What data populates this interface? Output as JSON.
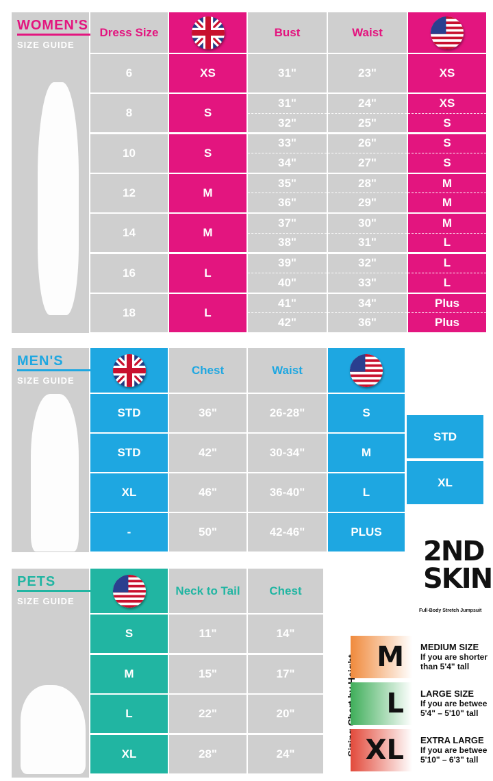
{
  "colors": {
    "women": "#e3157f",
    "men": "#1ea7e1",
    "pets": "#21b5a2",
    "grey": "#cfcfcf"
  },
  "women": {
    "title": "WOMEN'S",
    "subtitle": "SIZE GUIDE",
    "headers": {
      "dress": "Dress Size",
      "uk": "uk-flag-icon",
      "bust": "Bust",
      "waist": "Waist",
      "us": "us-flag-icon"
    },
    "rows": [
      {
        "dress": "6",
        "uk": "XS",
        "bust": [
          "31\""
        ],
        "waist": [
          "23\""
        ],
        "us": [
          "XS"
        ]
      },
      {
        "dress": "8",
        "uk": "S",
        "bust": [
          "31\"",
          "32\""
        ],
        "waist": [
          "24\"",
          "25\""
        ],
        "us": [
          "XS",
          "S"
        ]
      },
      {
        "dress": "10",
        "uk": "S",
        "bust": [
          "33\"",
          "34\""
        ],
        "waist": [
          "26\"",
          "27\""
        ],
        "us": [
          "S",
          "S"
        ]
      },
      {
        "dress": "12",
        "uk": "M",
        "bust": [
          "35\"",
          "36\""
        ],
        "waist": [
          "28\"",
          "29\""
        ],
        "us": [
          "M",
          "M"
        ]
      },
      {
        "dress": "14",
        "uk": "M",
        "bust": [
          "37\"",
          "38\""
        ],
        "waist": [
          "30\"",
          "31\""
        ],
        "us": [
          "M",
          "L"
        ]
      },
      {
        "dress": "16",
        "uk": "L",
        "bust": [
          "39\"",
          "40\""
        ],
        "waist": [
          "32\"",
          "33\""
        ],
        "us": [
          "L",
          "L"
        ]
      },
      {
        "dress": "18",
        "uk": "L",
        "bust": [
          "41\"",
          "42\""
        ],
        "waist": [
          "34\"",
          "36\""
        ],
        "us": [
          "Plus",
          "Plus"
        ]
      }
    ]
  },
  "men": {
    "title": "MEN'S",
    "subtitle": "SIZE GUIDE",
    "headers": {
      "uk": "uk-flag-icon",
      "chest": "Chest",
      "waist": "Waist",
      "us": "us-flag-icon"
    },
    "rows": [
      {
        "uk": "STD",
        "chest": "36\"",
        "waist": "26-28\"",
        "us": "S"
      },
      {
        "uk": "STD",
        "chest": "42\"",
        "waist": "30-34\"",
        "us": "M"
      },
      {
        "uk": "XL",
        "chest": "46\"",
        "waist": "36-40\"",
        "us": "L"
      },
      {
        "uk": "-",
        "chest": "50\"",
        "waist": "42-46\"",
        "us": "PLUS"
      }
    ],
    "extra": [
      "STD",
      "XL"
    ]
  },
  "pets": {
    "title": "PETS",
    "subtitle": "SIZE GUIDE",
    "headers": {
      "us": "us-flag-icon",
      "neck": "Neck to Tail",
      "chest": "Chest"
    },
    "rows": [
      {
        "us": "S",
        "neck": "11\"",
        "chest": "14\""
      },
      {
        "us": "M",
        "neck": "15\"",
        "chest": "17\""
      },
      {
        "us": "L",
        "neck": "22\"",
        "chest": "20\""
      },
      {
        "us": "XL",
        "neck": "28\"",
        "chest": "24\""
      }
    ]
  },
  "brand": {
    "logo": "2ND SKIN",
    "tagline": "Full-Body Stretch Jumpsuit"
  },
  "height_chart": {
    "title": "Sizing Chart by Height",
    "items": [
      {
        "size": "M",
        "label": "MEDIUM SIZE",
        "desc": "If you are shorter than 5'4\" tall",
        "color": "#f08a3c"
      },
      {
        "size": "L",
        "label": "LARGE SIZE",
        "desc": "If you are betwee 5'4\" – 5'10\" tall",
        "color": "#3fae5a"
      },
      {
        "size": "XL",
        "label": "EXTRA LARGE",
        "desc": "If you are betwee 5'10\" – 6'3\" tall",
        "color": "#e24a3b"
      }
    ]
  }
}
